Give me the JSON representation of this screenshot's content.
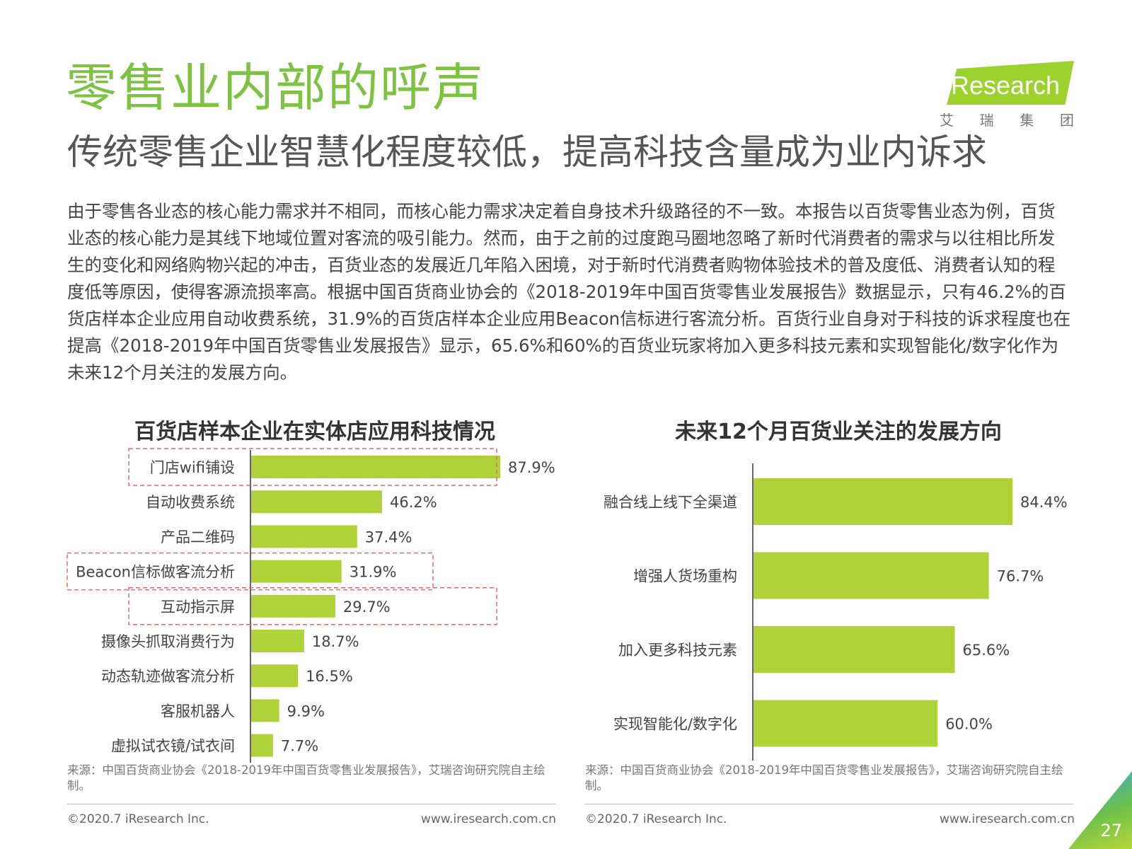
{
  "header": {
    "title": "零售业内部的呼声",
    "subtitle": "传统零售企业智慧化程度较低，提高科技含量成为业内诉求"
  },
  "logo": {
    "word": "iResearch",
    "chinese": [
      "艾",
      "瑞",
      "集",
      "团"
    ]
  },
  "body_text": "由于零售各业态的核心能力需求并不相同，而核心能力需求决定着自身技术升级路径的不一致。本报告以百货零售业态为例，百货业态的核心能力是其线下地域位置对客流的吸引能力。然而，由于之前的过度跑马圈地忽略了新时代消费者的需求与以往相比所发生的变化和网络购物兴起的冲击，百货业态的发展近几年陷入困境，对于新时代消费者购物体验技术的普及度低、消费者认知的程度低等原因，使得客源流损率高。根据中国百货商业协会的《2018-2019年中国百货零售业发展报告》数据显示，只有46.2%的百货店样本企业应用自动收费系统，31.9%的百货店样本企业应用Beacon信标进行客流分析。百货行业自身对于科技的诉求程度也在提高《2018-2019年中国百货零售业发展报告》显示，65.6%和60%的百货业玩家将加入更多科技元素和实现智能化/数字化作为未来12个月关注的发展方向。",
  "chart_data": [
    {
      "type": "bar",
      "orientation": "horizontal",
      "title": "百货店样本企业在实体店应用科技情况",
      "categories": [
        "门店wifi铺设",
        "自动收费系统",
        "产品二维码",
        "Beacon信标做客流分析",
        "互动指示屏",
        "摄像头抓取消费行为",
        "动态轨迹做客流分析",
        "客服机器人",
        "虚拟试衣镜/试衣间"
      ],
      "values": [
        87.9,
        46.2,
        37.4,
        31.9,
        29.7,
        18.7,
        16.5,
        9.9,
        7.7
      ],
      "value_labels": [
        "87.9%",
        "46.2%",
        "37.4%",
        "31.9%",
        "29.7%",
        "18.7%",
        "16.5%",
        "9.9%",
        "7.7%"
      ],
      "highlighted": [
        "门店wifi铺设",
        "Beacon信标做客流分析",
        "互动指示屏"
      ],
      "xlim": [
        0,
        100
      ],
      "bar_color": "#aed237",
      "highlight_color": "#e36a6a"
    },
    {
      "type": "bar",
      "orientation": "horizontal",
      "title": "未来12个月百货业关注的发展方向",
      "categories": [
        "融合线上线下全渠道",
        "增强人货场重构",
        "加入更多科技元素",
        "实现智能化/数字化"
      ],
      "values": [
        84.4,
        76.7,
        65.6,
        60.0
      ],
      "value_labels": [
        "84.4%",
        "76.7%",
        "65.6%",
        "60.0%"
      ],
      "xlim": [
        0,
        100
      ],
      "bar_color": "#aed237"
    }
  ],
  "sources": {
    "left": "来源：中国百货商业协会《2018-2019年中国百货零售业发展报告》，艾瑞咨询研究院自主绘制。",
    "right": "来源：中国百货商业协会《2018-2019年中国百货零售业发展报告》，艾瑞咨询研究院自主绘制。"
  },
  "footer": {
    "copyright_left": "©2020.7 iResearch Inc.",
    "url_left": "www.iresearch.com.cn",
    "copyright_right": "©2020.7 iResearch Inc.",
    "url_right": "www.iresearch.com.cn",
    "page_number": "27"
  },
  "colors": {
    "title_green": "#7dc242",
    "bar_green": "#aed237",
    "highlight_red": "#e36a6a"
  }
}
